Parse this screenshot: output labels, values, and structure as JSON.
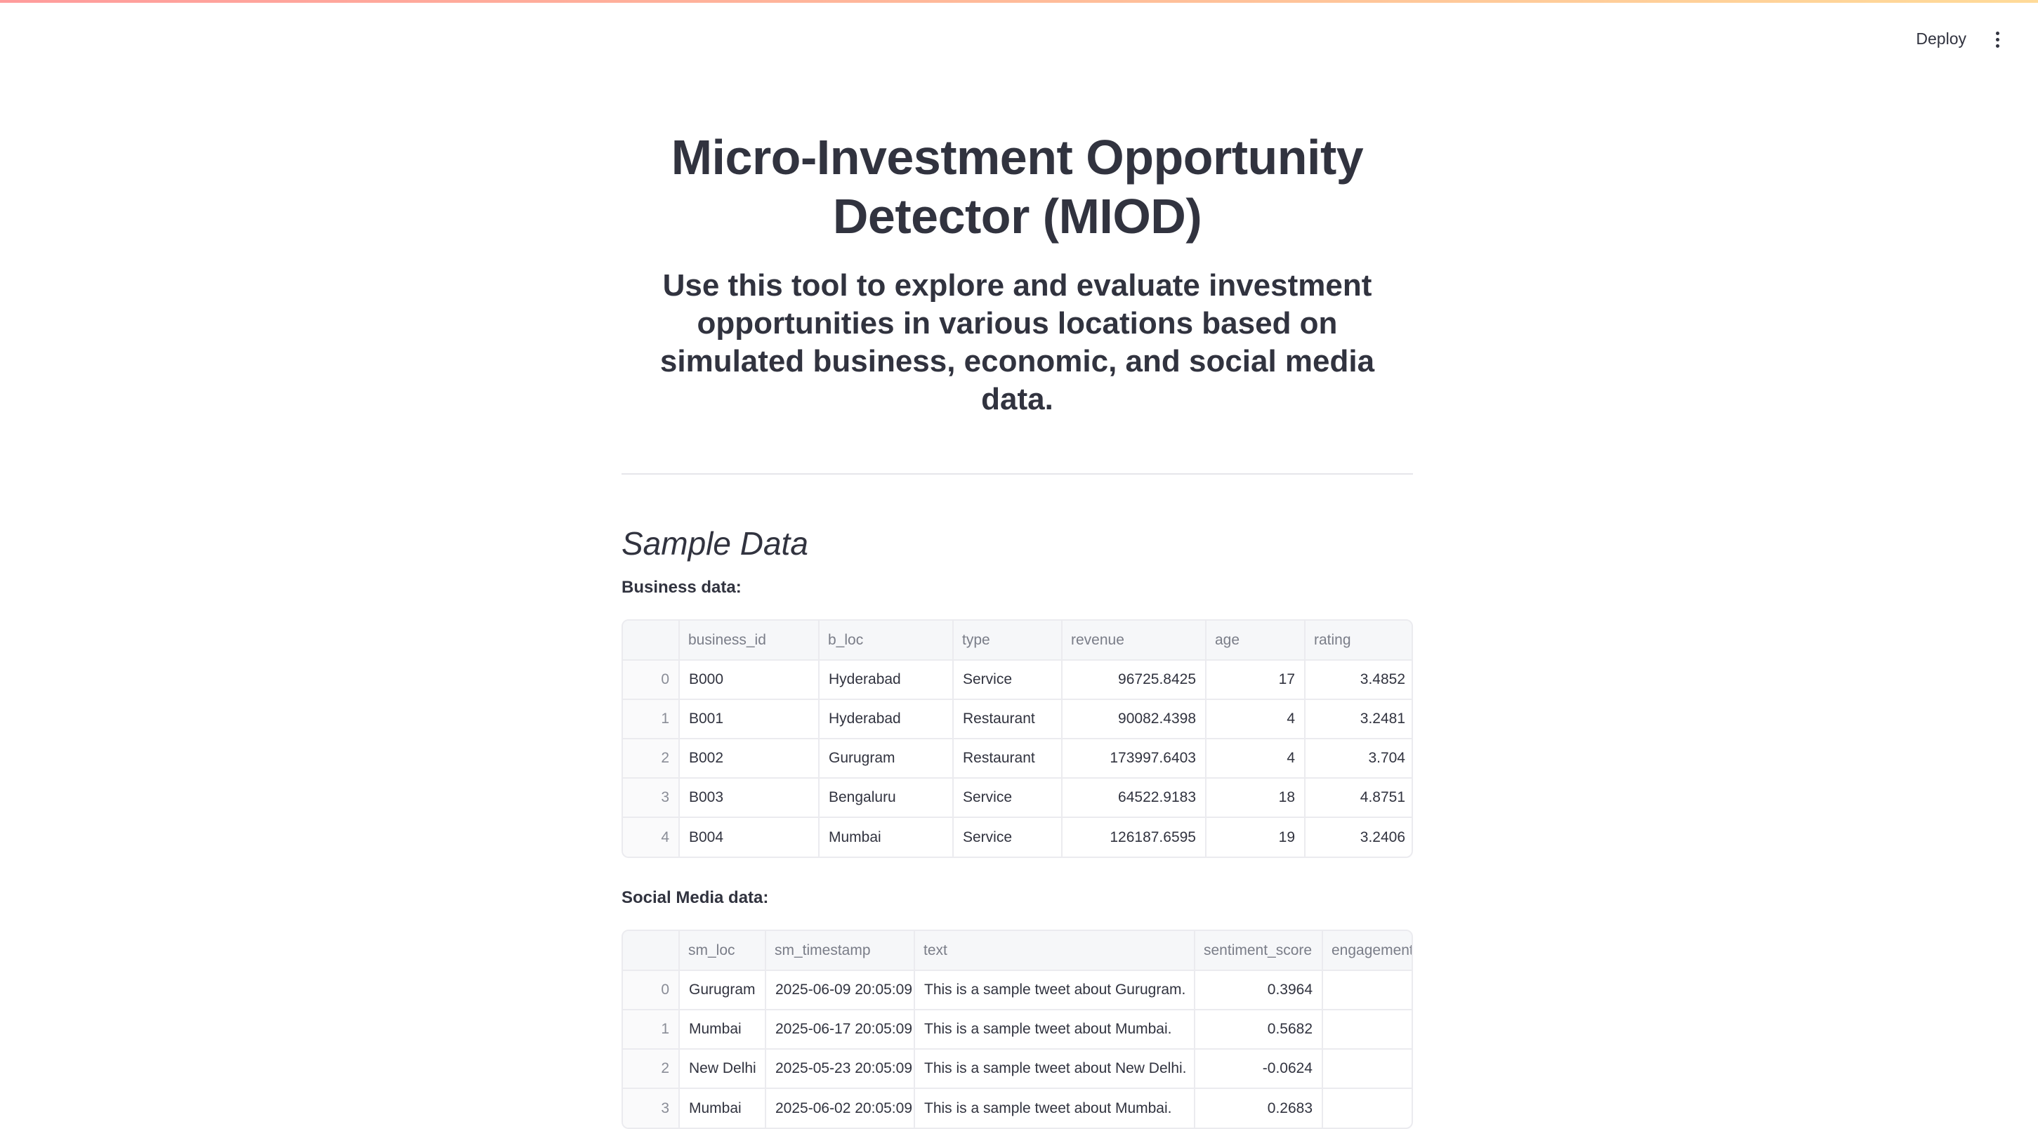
{
  "header": {
    "deploy_label": "Deploy",
    "menu_icon": "vertical-ellipsis-icon"
  },
  "main": {
    "title": "Micro-Investment Opportunity Detector (MIOD)",
    "subtitle": "Use this tool to explore and evaluate investment opportunities in various locations based on simulated business, economic, and social media data.",
    "section_heading": "Sample Data",
    "business": {
      "label": "Business data:",
      "columns": [
        "",
        "business_id",
        "b_loc",
        "type",
        "revenue",
        "age",
        "rating"
      ],
      "rows": [
        [
          "0",
          "B000",
          "Hyderabad",
          "Service",
          "96725.8425",
          "17",
          "3.4852"
        ],
        [
          "1",
          "B001",
          "Hyderabad",
          "Restaurant",
          "90082.4398",
          "4",
          "3.2481"
        ],
        [
          "2",
          "B002",
          "Gurugram",
          "Restaurant",
          "173997.6403",
          "4",
          "3.704"
        ],
        [
          "3",
          "B003",
          "Bengaluru",
          "Service",
          "64522.9183",
          "18",
          "4.8751"
        ],
        [
          "4",
          "B004",
          "Mumbai",
          "Service",
          "126187.6595",
          "19",
          "3.2406"
        ]
      ]
    },
    "social": {
      "label": "Social Media data:",
      "columns": [
        "",
        "sm_loc",
        "sm_timestamp",
        "text",
        "sentiment_score",
        "engagement"
      ],
      "rows": [
        [
          "0",
          "Gurugram",
          "2025-06-09 20:05:09",
          "This is a sample tweet about Gurugram.",
          "0.3964",
          ""
        ],
        [
          "1",
          "Mumbai",
          "2025-06-17 20:05:09",
          "This is a sample tweet about Mumbai.",
          "0.5682",
          ""
        ],
        [
          "2",
          "New Delhi",
          "2025-05-23 20:05:09",
          "This is a sample tweet about New Delhi.",
          "-0.0624",
          ""
        ],
        [
          "3",
          "Mumbai",
          "2025-06-02 20:05:09",
          "This is a sample tweet about Mumbai.",
          "0.2683",
          ""
        ]
      ]
    }
  }
}
